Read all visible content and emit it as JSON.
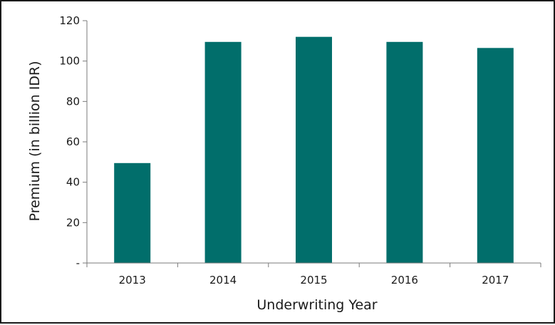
{
  "chart_data": {
    "type": "bar",
    "categories": [
      "2013",
      "2014",
      "2015",
      "2016",
      "2017"
    ],
    "values": [
      49.5,
      109.5,
      112,
      109.5,
      106.5
    ],
    "title": "",
    "xlabel": "Underwriting Year",
    "ylabel": "Premium (in billion IDR)",
    "ylim": [
      0,
      120
    ],
    "yticks": [
      0,
      20,
      40,
      60,
      80,
      100,
      120
    ],
    "ytick_labels": [
      "-",
      "20",
      "40",
      "60",
      "80",
      "100",
      "120"
    ],
    "bar_color": "#016e6b",
    "grid": false,
    "legend": "none"
  }
}
